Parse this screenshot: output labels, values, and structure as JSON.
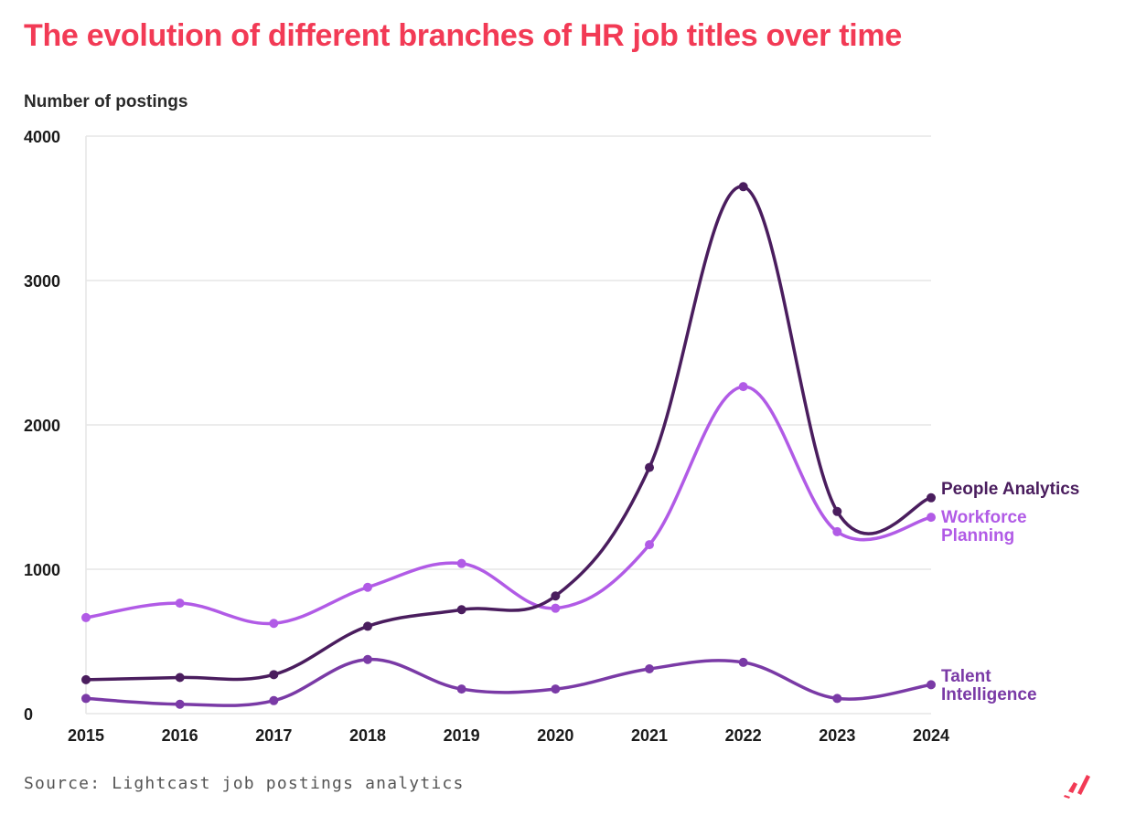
{
  "title": "The evolution of different branches of HR job titles over time",
  "source": "Source: Lightcast job postings analytics",
  "logo_icon": "lightcast-logo-icon",
  "chart_data": {
    "type": "line",
    "ylabel": "Number of postings",
    "xlabel": "",
    "x": [
      2015,
      2016,
      2017,
      2018,
      2019,
      2020,
      2021,
      2022,
      2023,
      2024
    ],
    "ylim": [
      0,
      4000
    ],
    "yticks": [
      0,
      1000,
      2000,
      3000,
      4000
    ],
    "grid": true,
    "legend": "end-of-line labels, right",
    "series": [
      {
        "name": "People Analytics",
        "color": "#4a1d5e",
        "label_lines": [
          "People Analytics"
        ],
        "values": [
          235,
          250,
          270,
          605,
          720,
          815,
          1705,
          3650,
          1400,
          1495
        ]
      },
      {
        "name": "Workforce Planning",
        "color": "#b15be6",
        "label_lines": [
          "Workforce",
          "Planning"
        ],
        "values": [
          665,
          765,
          625,
          875,
          1040,
          730,
          1170,
          2265,
          1260,
          1360
        ]
      },
      {
        "name": "Talent Intelligence",
        "color": "#7a3aa6",
        "label_lines": [
          "Talent",
          "Intelligence"
        ],
        "values": [
          105,
          65,
          90,
          375,
          170,
          170,
          310,
          355,
          105,
          200
        ]
      }
    ]
  }
}
